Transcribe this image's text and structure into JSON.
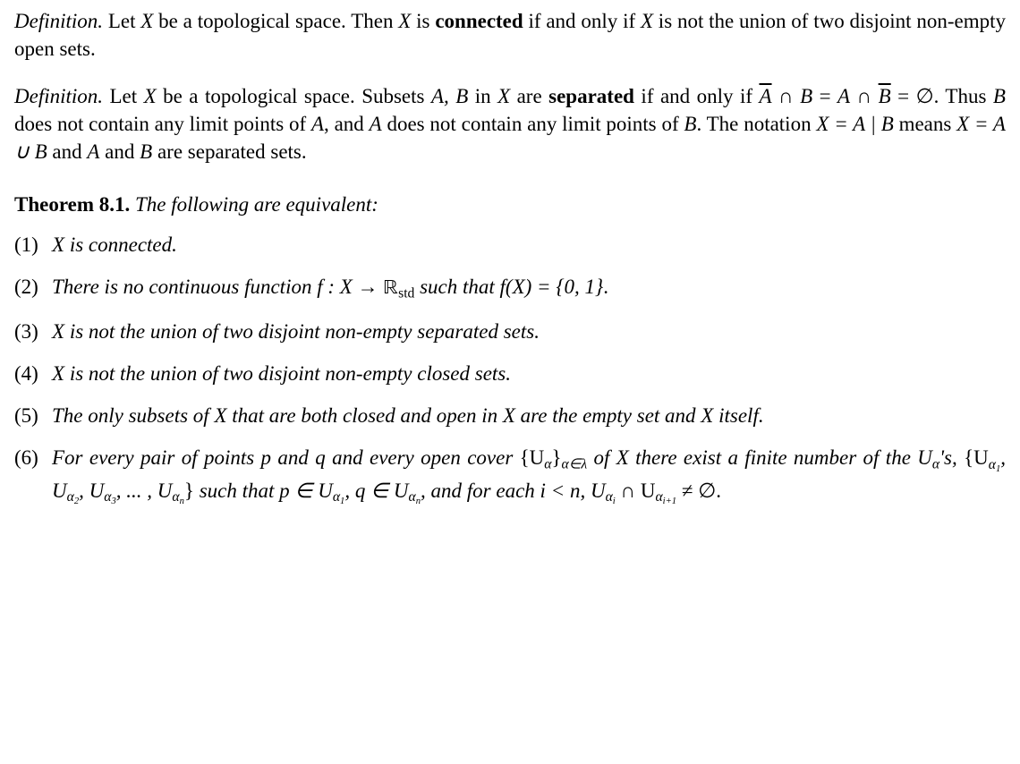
{
  "definition1": {
    "label": "Definition.",
    "text_lead": "  Let ",
    "X": "X",
    "text_mid1": " be a topological space. Then ",
    "text_mid2": " is ",
    "connected": "connected",
    "text_tail": " if and only if ",
    "text_end": " is not the union of two disjoint non-empty open sets."
  },
  "definition2": {
    "label": "Definition.",
    "text_lead": "  Let ",
    "X": "X",
    "text1": " be a topological space. Subsets ",
    "AB": "A, B",
    "text2": " in ",
    "text3": " are ",
    "separated": "separated",
    "text4": " if and only if ",
    "eq_lhs1": "A",
    "eq_op": " ∩ ",
    "eq_lhs2": "B",
    "eq_eq": " = ",
    "eq_rhs1": "A",
    "eq_rhs2": "B",
    "eq_empty": "∅",
    "text5": ". Thus ",
    "B": "B",
    "text6": " does not contain any limit points of ",
    "A": "A",
    "text7": ", and ",
    "text8": " does not contain any limit points of ",
    "text9": ". The notation ",
    "notation": "X = A | B",
    "text10": " means ",
    "means": "X = A ∪ B",
    "text11": " and ",
    "text12": " and ",
    "text13": " are separated sets."
  },
  "theorem": {
    "label": "Theorem 8.1.",
    "body": "   The following are equivalent:",
    "items": [
      {
        "num": "(1)",
        "text_pre": "",
        "X": "X",
        "text_post": " is connected."
      },
      {
        "num": "(2)",
        "text_pre": "There is no continuous function ",
        "f_decl": "f : X → ",
        "R": "ℝ",
        "sub": "std",
        "text_mid": " such that ",
        "fX": "f(X) = {0, 1}",
        "text_post": "."
      },
      {
        "num": "(3)",
        "text_pre": "",
        "X": "X",
        "text_post": " is not the union of two disjoint non-empty separated sets."
      },
      {
        "num": "(4)",
        "text_pre": "",
        "X": "X",
        "text_post": " is not the union of two disjoint non-empty closed sets."
      },
      {
        "num": "(5)",
        "text_pre": "The only subsets of ",
        "X": "X",
        "text_mid": " that are both closed and open in ",
        "X2": "X",
        "text_post": " are the empty set and ",
        "X3": "X",
        "text_end": " itself."
      },
      {
        "num": "(6)",
        "t1": "For every pair of points ",
        "p": "p",
        "and1": " and ",
        "q": "q",
        "t2": " and every open cover ",
        "cover": "{U",
        "alpha": "α",
        "brace": "}",
        "idx": "α∈λ",
        "t3": " of ",
        "X": "X",
        "t4": " there exist a finite number of the ",
        "Ua": "U",
        "t5": "'s, ",
        "set_open": "{U",
        "a1": "α",
        "one": "1",
        "comma": ", U",
        "a2": "α",
        "two": "2",
        "a3": "α",
        "three": "3",
        "dots": ", ... , U",
        "an": "α",
        "n": "n",
        "set_close": "}",
        "t6": " such that ",
        "pin": "p ∈ U",
        "qin": "q ∈ U",
        "t7": ", and for each ",
        "iln": "i < n, U",
        "ai": "α",
        "i": "i",
        "cap": " ∩ U",
        "ai1": "α",
        "i1": "i+1",
        "neq": " ≠ ∅."
      }
    ]
  },
  "style": {
    "font_family": "Times New Roman / serif",
    "font_size_pt": 17,
    "background_color": "#ffffff",
    "text_color": "#000000"
  }
}
